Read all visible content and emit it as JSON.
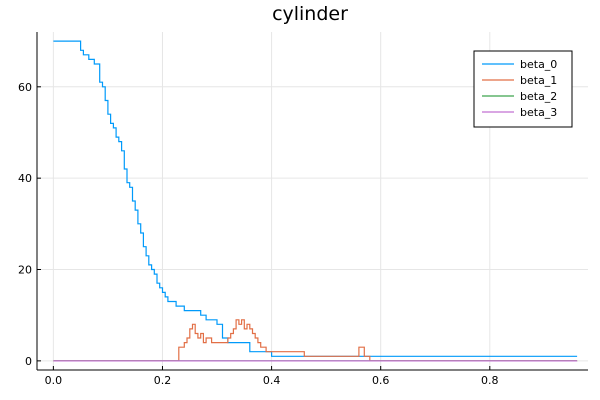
{
  "chart_data": {
    "type": "line",
    "title": "cylinder",
    "xlabel": "",
    "ylabel": "",
    "xlim": [
      -0.03,
      0.98
    ],
    "ylim": [
      -2,
      72
    ],
    "xticks": [
      0.0,
      0.2,
      0.4,
      0.6,
      0.8
    ],
    "xtick_labels": [
      "0.0",
      "0.2",
      "0.4",
      "0.6",
      "0.8"
    ],
    "yticks": [
      0,
      20,
      40,
      60
    ],
    "ytick_labels": [
      "0",
      "20",
      "40",
      "60"
    ],
    "grid": true,
    "legend_position": "top-right",
    "series": [
      {
        "name": "beta_0",
        "color": "#009AFA",
        "x": [
          0.0,
          0.05,
          0.055,
          0.065,
          0.075,
          0.085,
          0.09,
          0.095,
          0.1,
          0.105,
          0.11,
          0.115,
          0.12,
          0.125,
          0.13,
          0.135,
          0.14,
          0.145,
          0.15,
          0.155,
          0.16,
          0.165,
          0.17,
          0.175,
          0.18,
          0.185,
          0.19,
          0.195,
          0.2,
          0.205,
          0.21,
          0.215,
          0.22,
          0.225,
          0.23,
          0.235,
          0.24,
          0.26,
          0.27,
          0.28,
          0.29,
          0.3,
          0.31,
          0.32,
          0.36,
          0.365,
          0.4,
          0.5,
          0.6,
          0.65,
          0.7,
          0.8,
          0.9,
          0.96
        ],
        "y": [
          70,
          68,
          67,
          66,
          65,
          61,
          60,
          57,
          54,
          52,
          51,
          49,
          48,
          46,
          42,
          39,
          38,
          35,
          33,
          30,
          28,
          25,
          23,
          21,
          20,
          19,
          17,
          16,
          15,
          14,
          13,
          13,
          13,
          12,
          12,
          12,
          11,
          11,
          10,
          9,
          9,
          8,
          5,
          4,
          2,
          2,
          1,
          1,
          1,
          1,
          1,
          1,
          1,
          1
        ]
      },
      {
        "name": "beta_1",
        "color": "#E26F46",
        "x": [
          0.0,
          0.225,
          0.23,
          0.24,
          0.245,
          0.25,
          0.255,
          0.26,
          0.265,
          0.27,
          0.275,
          0.28,
          0.29,
          0.31,
          0.32,
          0.325,
          0.33,
          0.335,
          0.34,
          0.345,
          0.35,
          0.355,
          0.36,
          0.365,
          0.37,
          0.375,
          0.38,
          0.39,
          0.4,
          0.42,
          0.44,
          0.46,
          0.5,
          0.55,
          0.56,
          0.565,
          0.57,
          0.58,
          0.6,
          0.7,
          0.96
        ],
        "y": [
          0,
          0,
          3,
          4,
          5,
          7,
          8,
          6,
          5,
          6,
          4,
          5,
          4,
          4,
          5,
          6,
          7,
          9,
          8,
          9,
          7,
          8,
          7,
          6,
          5,
          4,
          3,
          2,
          2,
          2,
          2,
          1,
          1,
          1,
          3,
          3,
          1,
          0,
          0,
          0,
          0
        ]
      },
      {
        "name": "beta_2",
        "color": "#3DA44D",
        "x": [
          0.0,
          0.96
        ],
        "y": [
          0,
          0
        ]
      },
      {
        "name": "beta_3",
        "color": "#C271D2",
        "x": [
          0.0,
          0.96
        ],
        "y": [
          0,
          0
        ]
      }
    ]
  }
}
